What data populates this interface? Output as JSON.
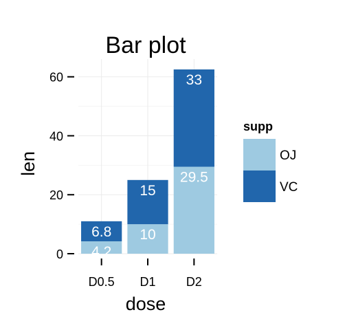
{
  "chart_data": {
    "type": "bar",
    "stacked": true,
    "title": "Bar plot",
    "xlabel": "dose",
    "ylabel": "len",
    "categories": [
      "D0.5",
      "D1",
      "D2"
    ],
    "series": [
      {
        "name": "OJ",
        "values": [
          4.2,
          10,
          29.5
        ],
        "labels": [
          "4.2",
          "10",
          "29.5"
        ],
        "color": "#9ecae1"
      },
      {
        "name": "VC",
        "values": [
          6.8,
          15,
          33
        ],
        "labels": [
          "6.8",
          "15",
          "33"
        ],
        "color": "#2166ac"
      }
    ],
    "ylim": [
      0,
      66
    ],
    "yticks": [
      0,
      20,
      40,
      60
    ],
    "grid": true,
    "legend": {
      "title": "supp",
      "position": "right"
    },
    "background": "#ffffff",
    "grid_color": "#ebebeb",
    "label_color": "#ffffff"
  }
}
